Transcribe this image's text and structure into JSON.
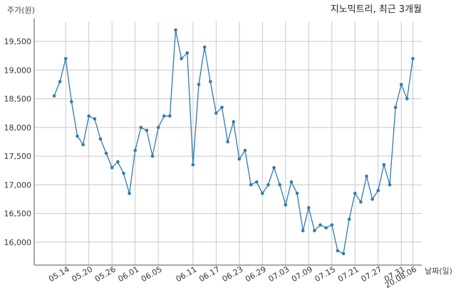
{
  "chart_data": {
    "type": "line",
    "title": "지노믹트리, 최근 3개월",
    "ylabel": "주가(원)",
    "xlabel": "날짜(일)",
    "ylim": [
      15600,
      19850
    ],
    "yticks": [
      16000,
      16500,
      17000,
      17500,
      18000,
      18500,
      19000,
      19500
    ],
    "ytick_labels": [
      "16,000",
      "16,500",
      "17,000",
      "17,500",
      "18,000",
      "18,500",
      "19,000",
      "19,500"
    ],
    "xtick_indices": [
      2,
      6,
      10,
      14,
      18,
      24,
      28,
      32,
      36,
      40,
      44,
      48,
      52,
      56,
      60
    ],
    "xtick_labels": [
      "05.14",
      "05.20",
      "05.26",
      "06.01",
      "06.05",
      "06.11",
      "06.17",
      "06.23",
      "06.29",
      "07.03",
      "07.09",
      "07.15",
      "07.21",
      "07.27",
      "07.31",
      "20.08.06"
    ],
    "xtick_last_index": 62,
    "grid": true,
    "color": "#2e7bb0",
    "series": [
      {
        "values": [
          18550,
          18800,
          19200,
          18450,
          17850,
          17700,
          18200,
          18150,
          17800,
          17550,
          17300,
          17400,
          17200,
          16850,
          17600,
          18000,
          17950,
          17500,
          18000,
          18200,
          18200,
          19700,
          19200,
          19300,
          17350,
          18750,
          19400,
          18800,
          18250,
          18350,
          17750,
          18100,
          17450,
          17600,
          17000,
          17050,
          16850,
          17000,
          17300,
          17000,
          16650,
          17050,
          16850,
          16200,
          16600,
          16200,
          16300,
          16250,
          16300,
          15850,
          15800,
          16400,
          16850,
          16700,
          17150,
          16750,
          16900,
          17350,
          17000,
          18350,
          18750,
          18500,
          19200
        ]
      }
    ]
  }
}
